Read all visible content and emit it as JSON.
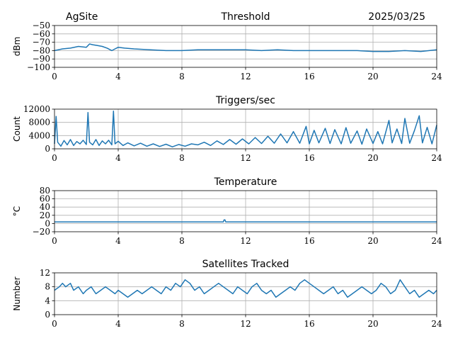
{
  "header": {
    "site": "AgSite",
    "date": "2025/03/25"
  },
  "colors": {
    "line": "#1f77b4",
    "grid": "#b0b0b0",
    "axis": "#000000"
  },
  "chart_data": [
    {
      "id": "threshold",
      "type": "line",
      "title": "Threshold",
      "ylabel": "dBm",
      "xlim": [
        0,
        24
      ],
      "ylim": [
        -100,
        -50
      ],
      "xticks": [
        0,
        4,
        8,
        12,
        16,
        20,
        24
      ],
      "yticks": [
        -100,
        -90,
        -80,
        -70,
        -60,
        -50
      ],
      "ytick_labels": [
        "−100",
        "−90",
        "−80",
        "−70",
        "−60",
        "−50"
      ],
      "grid": true,
      "series": [
        {
          "x": [
            0,
            0.5,
            1,
            1.5,
            2,
            2.2,
            2.4,
            2.7,
            3,
            3.3,
            3.6,
            3.8,
            4,
            4.4,
            5,
            6,
            7,
            8,
            9,
            10,
            11,
            12,
            13,
            14,
            15,
            16,
            17,
            18,
            19,
            20,
            21,
            22,
            23,
            24
          ],
          "y": [
            -80,
            -78,
            -77,
            -75,
            -76,
            -72,
            -73,
            -74,
            -75,
            -77,
            -80,
            -78,
            -76,
            -77,
            -78,
            -79,
            -80,
            -80,
            -79,
            -79,
            -79,
            -79,
            -80,
            -79,
            -80,
            -80,
            -80,
            -80,
            -80,
            -81,
            -81,
            -80,
            -81,
            -79
          ]
        }
      ]
    },
    {
      "id": "triggers",
      "type": "line",
      "title": "Triggers/sec",
      "ylabel": "Count",
      "xlim": [
        0,
        24
      ],
      "ylim": [
        0,
        12000
      ],
      "xticks": [
        0,
        4,
        8,
        12,
        16,
        20,
        24
      ],
      "yticks": [
        0,
        4000,
        8000,
        12000
      ],
      "ytick_labels": [
        "0",
        "4000",
        "8000",
        "12000"
      ],
      "grid": true,
      "series": [
        {
          "x": [
            0,
            0.1,
            0.2,
            0.4,
            0.6,
            0.8,
            1.0,
            1.2,
            1.4,
            1.6,
            1.8,
            2.0,
            2.1,
            2.2,
            2.4,
            2.6,
            2.8,
            3.0,
            3.2,
            3.4,
            3.6,
            3.7,
            3.8,
            4.0,
            4.3,
            4.6,
            5.0,
            5.4,
            5.8,
            6.2,
            6.6,
            7.0,
            7.4,
            7.8,
            8.2,
            8.6,
            9.0,
            9.4,
            9.8,
            10.2,
            10.6,
            11.0,
            11.4,
            11.8,
            12.2,
            12.6,
            13.0,
            13.4,
            13.8,
            14.2,
            14.6,
            15.0,
            15.4,
            15.8,
            16.0,
            16.3,
            16.6,
            17.0,
            17.3,
            17.6,
            18.0,
            18.3,
            18.6,
            19.0,
            19.3,
            19.6,
            20.0,
            20.3,
            20.6,
            21.0,
            21.2,
            21.5,
            21.8,
            22.0,
            22.3,
            22.6,
            22.9,
            23.1,
            23.4,
            23.7,
            24.0
          ],
          "y": [
            1500,
            9800,
            2000,
            800,
            2500,
            1200,
            2800,
            1000,
            2200,
            1500,
            2600,
            1300,
            11000,
            2000,
            1200,
            2800,
            1000,
            2400,
            1500,
            2600,
            1200,
            11400,
            1500,
            2300,
            1000,
            1800,
            900,
            1700,
            800,
            1500,
            700,
            1400,
            600,
            1300,
            800,
            1500,
            1200,
            2000,
            1000,
            2400,
            1300,
            2800,
            1400,
            3000,
            1500,
            3400,
            1600,
            3800,
            1700,
            4500,
            1800,
            5200,
            1700,
            6800,
            1500,
            5600,
            1800,
            6200,
            1600,
            5800,
            1500,
            6400,
            1700,
            5400,
            1400,
            6000,
            1600,
            5200,
            1500,
            8600,
            1800,
            6000,
            1600,
            9200,
            1700,
            5500,
            10000,
            1800,
            6500,
            1500,
            7200
          ]
        }
      ]
    },
    {
      "id": "temperature",
      "type": "line",
      "title": "Temperature",
      "ylabel": "°C",
      "xlim": [
        0,
        24
      ],
      "ylim": [
        -20,
        80
      ],
      "xticks": [
        0,
        4,
        8,
        12,
        16,
        20,
        24
      ],
      "yticks": [
        -20,
        0,
        20,
        40,
        60,
        80
      ],
      "ytick_labels": [
        "−20",
        "0",
        "20",
        "40",
        "60",
        "80"
      ],
      "grid": true,
      "series": [
        {
          "x": [
            0,
            10.6,
            10.65,
            10.7,
            10.75,
            24
          ],
          "y": [
            4,
            4,
            9,
            9,
            4,
            4
          ]
        }
      ]
    },
    {
      "id": "satellites",
      "type": "line",
      "title": "Satellites Tracked",
      "ylabel": "Number",
      "xlim": [
        0,
        24
      ],
      "ylim": [
        0,
        12
      ],
      "xticks": [
        0,
        4,
        8,
        12,
        16,
        20,
        24
      ],
      "yticks": [
        0,
        4,
        8,
        12
      ],
      "ytick_labels": [
        "0",
        "4",
        "8",
        "12"
      ],
      "grid": true,
      "series": [
        {
          "x": [
            0,
            0.3,
            0.5,
            0.7,
            1.0,
            1.2,
            1.5,
            1.8,
            2.0,
            2.3,
            2.6,
            2.9,
            3.2,
            3.5,
            3.8,
            4.0,
            4.3,
            4.6,
            4.9,
            5.2,
            5.5,
            5.8,
            6.1,
            6.4,
            6.7,
            7.0,
            7.3,
            7.6,
            7.9,
            8.2,
            8.5,
            8.8,
            9.1,
            9.4,
            9.7,
            10.0,
            10.3,
            10.6,
            10.9,
            11.2,
            11.5,
            11.8,
            12.1,
            12.4,
            12.7,
            13.0,
            13.3,
            13.6,
            13.9,
            14.2,
            14.5,
            14.8,
            15.1,
            15.4,
            15.7,
            16.0,
            16.3,
            16.6,
            16.9,
            17.2,
            17.5,
            17.8,
            18.1,
            18.4,
            18.7,
            19.0,
            19.3,
            19.6,
            19.9,
            20.2,
            20.5,
            20.8,
            21.1,
            21.4,
            21.7,
            22.0,
            22.3,
            22.6,
            22.9,
            23.2,
            23.5,
            23.8,
            24.0
          ],
          "y": [
            7,
            8,
            9,
            8,
            9,
            7,
            8,
            6,
            7,
            8,
            6,
            7,
            8,
            7,
            6,
            7,
            6,
            5,
            6,
            7,
            6,
            7,
            8,
            7,
            6,
            8,
            7,
            9,
            8,
            10,
            9,
            7,
            8,
            6,
            7,
            8,
            9,
            8,
            7,
            6,
            8,
            7,
            6,
            8,
            9,
            7,
            6,
            7,
            5,
            6,
            7,
            8,
            7,
            9,
            10,
            9,
            8,
            7,
            6,
            7,
            8,
            6,
            7,
            5,
            6,
            7,
            8,
            7,
            6,
            7,
            9,
            8,
            6,
            7,
            10,
            8,
            6,
            7,
            5,
            6,
            7,
            6,
            7
          ]
        }
      ]
    }
  ]
}
